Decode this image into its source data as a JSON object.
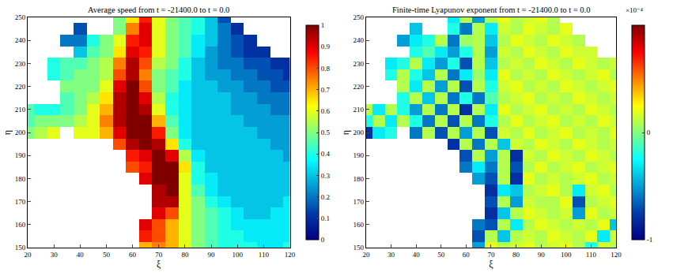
{
  "chart_data": [
    {
      "type": "heatmap",
      "title": "Average speed from t = -21400.0 to t = 0.0",
      "x_label": "ξ",
      "y_label": "η",
      "xlim": [
        20,
        120
      ],
      "ylim": [
        150,
        250
      ],
      "xticks": [
        20,
        30,
        40,
        50,
        60,
        70,
        80,
        90,
        100,
        110,
        120
      ],
      "yticks": [
        150,
        160,
        170,
        180,
        190,
        200,
        210,
        220,
        230,
        240,
        250
      ],
      "clim": [
        0,
        1
      ],
      "cticks": [
        0,
        0.1,
        0.2,
        0.3,
        0.4,
        0.5,
        0.6,
        0.7,
        0.8,
        0.9,
        1
      ],
      "x": [
        20,
        25,
        30,
        35,
        40,
        45,
        50,
        55,
        60,
        65,
        70,
        75,
        80,
        85,
        90,
        95,
        100,
        105,
        110,
        115,
        120
      ],
      "y": [
        250,
        245,
        240,
        235,
        230,
        225,
        220,
        215,
        210,
        205,
        200,
        195,
        190,
        185,
        180,
        175,
        170,
        165,
        160,
        155,
        150
      ],
      "cells": [
        [
          null,
          null,
          null,
          null,
          null,
          null,
          null,
          0.5,
          0.65,
          0.85,
          0.6,
          0.5,
          0.45,
          0.4,
          0.3,
          0.15,
          null,
          null,
          null,
          null,
          null
        ],
        [
          null,
          null,
          null,
          null,
          0.15,
          null,
          null,
          0.5,
          0.75,
          0.9,
          0.6,
          0.5,
          0.45,
          0.4,
          0.3,
          0.2,
          0.1,
          null,
          null,
          null,
          null
        ],
        [
          null,
          null,
          null,
          0.2,
          0.2,
          0.4,
          0.5,
          0.6,
          0.85,
          0.9,
          0.6,
          0.5,
          0.45,
          0.35,
          0.3,
          0.2,
          0.15,
          0.1,
          null,
          null,
          null
        ],
        [
          null,
          null,
          null,
          null,
          0.3,
          0.45,
          0.5,
          0.65,
          0.9,
          0.85,
          0.6,
          0.5,
          0.45,
          0.35,
          0.25,
          0.2,
          0.15,
          0.1,
          0.1,
          null,
          null
        ],
        [
          null,
          null,
          0.4,
          0.45,
          0.45,
          0.5,
          0.55,
          0.75,
          0.95,
          0.8,
          0.55,
          0.5,
          0.4,
          0.3,
          0.25,
          0.2,
          0.2,
          0.15,
          0.15,
          0.1,
          0.1
        ],
        [
          null,
          null,
          0.4,
          0.45,
          0.5,
          0.5,
          0.55,
          0.8,
          0.95,
          0.75,
          0.5,
          0.45,
          0.4,
          0.3,
          0.25,
          0.25,
          0.2,
          0.2,
          0.15,
          0.15,
          0.1
        ],
        [
          null,
          null,
          null,
          0.5,
          0.5,
          0.5,
          0.6,
          0.9,
          1,
          0.8,
          0.5,
          0.45,
          0.35,
          0.3,
          0.3,
          0.25,
          0.25,
          0.2,
          0.2,
          0.15,
          0.15
        ],
        [
          null,
          null,
          null,
          0.45,
          0.5,
          0.55,
          0.65,
          0.95,
          1,
          0.9,
          0.55,
          0.4,
          0.35,
          0.3,
          0.3,
          0.3,
          0.25,
          0.25,
          0.2,
          0.2,
          0.2
        ],
        [
          0.45,
          0.4,
          0.4,
          0.45,
          0.5,
          0.6,
          0.7,
          0.95,
          1,
          0.95,
          0.6,
          0.4,
          0.35,
          0.3,
          0.3,
          0.3,
          0.25,
          0.25,
          0.25,
          0.2,
          0.2
        ],
        [
          0.45,
          0.5,
          0.5,
          0.5,
          0.55,
          0.6,
          0.75,
          0.95,
          1,
          1,
          0.7,
          0.45,
          0.35,
          0.3,
          0.3,
          0.3,
          0.3,
          0.25,
          0.25,
          0.25,
          0.25
        ],
        [
          0.5,
          0.55,
          0.6,
          null,
          0.6,
          0.6,
          0.7,
          0.9,
          1,
          1,
          0.85,
          0.5,
          0.35,
          0.3,
          0.3,
          0.3,
          0.3,
          0.3,
          0.25,
          0.25,
          0.25
        ],
        [
          null,
          null,
          null,
          null,
          null,
          null,
          null,
          0.8,
          0.95,
          1,
          0.95,
          0.65,
          0.4,
          0.3,
          0.3,
          0.3,
          0.3,
          0.3,
          0.3,
          0.25,
          0.25
        ],
        [
          null,
          null,
          null,
          null,
          null,
          null,
          null,
          null,
          0.85,
          0.9,
          1,
          0.9,
          0.55,
          0.35,
          0.3,
          0.3,
          0.3,
          0.3,
          0.3,
          0.3,
          0.25
        ],
        [
          null,
          null,
          null,
          null,
          null,
          null,
          null,
          null,
          0.8,
          0.85,
          1,
          1,
          0.65,
          0.4,
          0.3,
          0.3,
          0.3,
          0.3,
          0.3,
          0.3,
          0.3
        ],
        [
          null,
          null,
          null,
          null,
          null,
          null,
          null,
          null,
          null,
          0.9,
          1,
          1,
          0.6,
          0.4,
          0.35,
          0.3,
          0.3,
          0.3,
          0.3,
          0.3,
          0.3
        ],
        [
          null,
          null,
          null,
          null,
          null,
          null,
          null,
          null,
          null,
          null,
          0.95,
          1,
          0.6,
          0.45,
          0.35,
          0.3,
          0.3,
          0.3,
          0.3,
          0.3,
          0.3
        ],
        [
          null,
          null,
          null,
          null,
          null,
          null,
          null,
          null,
          null,
          null,
          0.95,
          0.95,
          0.6,
          0.5,
          0.4,
          0.35,
          0.3,
          0.3,
          0.3,
          0.3,
          0.35
        ],
        [
          null,
          null,
          null,
          null,
          null,
          null,
          null,
          null,
          null,
          null,
          0.9,
          0.8,
          0.6,
          0.5,
          0.45,
          0.4,
          0.35,
          0.3,
          0.3,
          0.35,
          0.35
        ],
        [
          null,
          null,
          null,
          null,
          null,
          null,
          null,
          null,
          null,
          0.9,
          0.8,
          0.7,
          0.6,
          0.5,
          0.45,
          0.4,
          0.35,
          0.35,
          0.35,
          0.35,
          0.35
        ],
        [
          null,
          null,
          null,
          null,
          null,
          null,
          null,
          null,
          null,
          0.85,
          0.8,
          0.7,
          0.6,
          0.5,
          0.45,
          0.4,
          0.4,
          0.35,
          0.35,
          0.35,
          0.35
        ],
        [
          null,
          null,
          null,
          null,
          null,
          null,
          null,
          null,
          null,
          0.7,
          0.75,
          0.7,
          0.6,
          0.5,
          0.45,
          0.4,
          0.4,
          0.4,
          0.35,
          0.35,
          0.4
        ]
      ]
    },
    {
      "type": "heatmap",
      "title": "Finite-time Lyapunov exponent from t = -21400.0 to t = 0.0",
      "x_label": "ξ",
      "y_label": "η",
      "xlim": [
        20,
        120
      ],
      "ylim": [
        150,
        250
      ],
      "xticks": [
        20,
        30,
        40,
        50,
        60,
        70,
        80,
        90,
        100,
        110,
        120
      ],
      "yticks": [
        150,
        160,
        170,
        180,
        190,
        200,
        210,
        220,
        230,
        240,
        250
      ],
      "clim": [
        -1,
        1
      ],
      "cticks": [
        -1,
        0
      ],
      "colorbar_exponent": "×10⁻⁴",
      "x": [
        20,
        25,
        30,
        35,
        40,
        45,
        50,
        55,
        60,
        65,
        70,
        75,
        80,
        85,
        90,
        95,
        100,
        105,
        110,
        115,
        120
      ],
      "y": [
        250,
        245,
        240,
        235,
        230,
        225,
        220,
        215,
        210,
        205,
        200,
        195,
        190,
        185,
        180,
        175,
        170,
        165,
        160,
        155,
        150
      ],
      "cells": [
        [
          null,
          null,
          null,
          null,
          null,
          null,
          null,
          -0.3,
          0.1,
          -0.5,
          0.1,
          0.2,
          0.1,
          0.15,
          0.2,
          0.1,
          null,
          null,
          null,
          null,
          null
        ],
        [
          null,
          null,
          null,
          null,
          -0.4,
          null,
          null,
          -0.2,
          -0.6,
          0.1,
          -0.3,
          0.15,
          0.1,
          0.2,
          0.15,
          0.1,
          0.2,
          null,
          null,
          null,
          null
        ],
        [
          null,
          null,
          null,
          -0.5,
          -0.3,
          -0.2,
          0.1,
          -0.6,
          0.05,
          0.1,
          -0.4,
          0.1,
          0.2,
          0.15,
          0.1,
          0.2,
          0.15,
          0.1,
          null,
          null,
          null
        ],
        [
          null,
          null,
          null,
          null,
          -0.2,
          -0.1,
          -0.3,
          -0.5,
          -0.2,
          0.1,
          -0.5,
          0.15,
          0.1,
          0.2,
          0.15,
          0.1,
          0.2,
          0.15,
          0.15,
          null,
          null
        ],
        [
          null,
          null,
          -0.3,
          -0.2,
          0.1,
          -0.3,
          -0.5,
          -0.2,
          -0.7,
          0.1,
          -0.4,
          0.1,
          0.15,
          0.1,
          0.2,
          0.15,
          0.1,
          0.2,
          0.15,
          0.1,
          0.15
        ],
        [
          null,
          null,
          -0.2,
          0.1,
          -0.2,
          -0.4,
          0.1,
          -0.6,
          -0.3,
          0.05,
          -0.3,
          0.2,
          0.1,
          0.15,
          0.1,
          0.2,
          0.15,
          0.1,
          0.15,
          0.2,
          0.1
        ],
        [
          null,
          null,
          null,
          0.1,
          -0.3,
          0.1,
          -0.5,
          0.1,
          -0.7,
          0.1,
          -0.2,
          0.15,
          0.2,
          0.1,
          0.15,
          0.1,
          0.2,
          0.15,
          0.1,
          0.15,
          0.2
        ],
        [
          null,
          null,
          null,
          -0.2,
          0.1,
          -0.4,
          0.1,
          -0.6,
          -0.2,
          -0.6,
          -0.1,
          0.1,
          0.15,
          0.2,
          0.1,
          0.15,
          0.1,
          0.2,
          0.15,
          0.1,
          0.15
        ],
        [
          0.1,
          -0.3,
          0.1,
          -0.2,
          -0.5,
          0.1,
          -0.6,
          0.1,
          -0.8,
          0.1,
          -0.3,
          0.2,
          0.1,
          0.15,
          0.2,
          0.1,
          0.15,
          0.1,
          0.2,
          0.15,
          0.1
        ],
        [
          -0.2,
          0.1,
          -0.3,
          0.1,
          -0.2,
          -0.6,
          0.1,
          -0.7,
          0.1,
          -0.6,
          -0.2,
          0.1,
          0.2,
          0.1,
          0.15,
          0.2,
          0.1,
          0.15,
          0.1,
          0.2,
          0.15
        ],
        [
          -0.8,
          -0.3,
          -0.2,
          null,
          -0.6,
          0.1,
          -0.7,
          0.1,
          -0.5,
          0.1,
          -0.7,
          0.15,
          0.1,
          0.2,
          0.1,
          0.15,
          0.2,
          0.1,
          0.15,
          0.1,
          0.2
        ],
        [
          null,
          null,
          null,
          null,
          null,
          null,
          null,
          -0.8,
          0.1,
          -0.6,
          0.1,
          -0.4,
          0.15,
          0.1,
          0.2,
          0.15,
          0.1,
          0.2,
          0.15,
          0.1,
          0.15
        ],
        [
          null,
          null,
          null,
          null,
          null,
          null,
          null,
          null,
          -0.7,
          0.1,
          -0.5,
          0.1,
          -0.8,
          0.15,
          0.1,
          0.2,
          0.15,
          0.1,
          0.2,
          0.15,
          0.1
        ],
        [
          null,
          null,
          null,
          null,
          null,
          null,
          null,
          null,
          -0.6,
          -0.3,
          -0.6,
          0.1,
          -0.7,
          0.1,
          0.2,
          0.1,
          0.15,
          0.2,
          0.1,
          0.15,
          0.2
        ],
        [
          null,
          null,
          null,
          null,
          null,
          null,
          null,
          null,
          null,
          -0.5,
          -0.7,
          0.1,
          -0.8,
          0.2,
          0.1,
          0.15,
          0.1,
          0.15,
          0.2,
          0.1,
          0.15
        ],
        [
          null,
          null,
          null,
          null,
          null,
          null,
          null,
          null,
          null,
          null,
          -0.8,
          -0.3,
          -0.4,
          0.1,
          0.15,
          0.2,
          0.1,
          -0.3,
          0.15,
          0.2,
          0.1
        ],
        [
          null,
          null,
          null,
          null,
          null,
          null,
          null,
          null,
          null,
          null,
          -0.7,
          0.1,
          -0.5,
          0.15,
          0.1,
          0.1,
          0.2,
          -0.7,
          0.1,
          0.15,
          0.2
        ],
        [
          null,
          null,
          null,
          null,
          null,
          null,
          null,
          null,
          null,
          null,
          -0.8,
          -0.4,
          0.1,
          0.2,
          0.15,
          0.1,
          0.15,
          -0.5,
          0.2,
          0.1,
          0.15
        ],
        [
          null,
          null,
          null,
          null,
          null,
          null,
          null,
          null,
          null,
          -0.6,
          -0.7,
          0.1,
          -0.3,
          0.1,
          0.2,
          0.15,
          0.1,
          0.15,
          0.1,
          0.2,
          -0.4
        ],
        [
          null,
          null,
          null,
          null,
          null,
          null,
          null,
          null,
          null,
          -0.7,
          0.1,
          -0.4,
          0.1,
          0.15,
          0.1,
          0.2,
          0.15,
          0.1,
          0.2,
          -0.3,
          0.15
        ],
        [
          null,
          null,
          null,
          null,
          null,
          null,
          null,
          null,
          null,
          -0.5,
          0.2,
          0.1,
          0.15,
          0.2,
          0.1,
          0.15,
          0.2,
          0.1,
          -0.2,
          0.15,
          0.1
        ]
      ]
    }
  ]
}
